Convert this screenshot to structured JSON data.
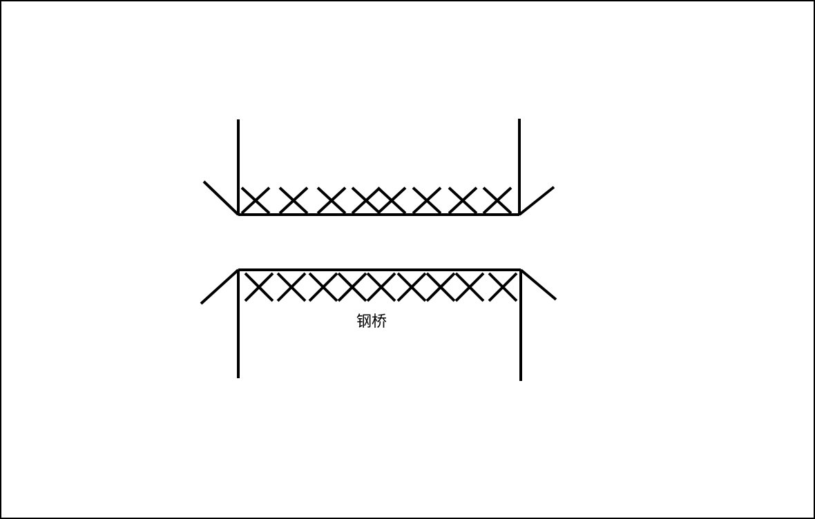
{
  "diagram": {
    "label": "钢桥",
    "symbol": "steel-bridge",
    "ink_color": "#000000",
    "background_color": "#ffffff"
  }
}
